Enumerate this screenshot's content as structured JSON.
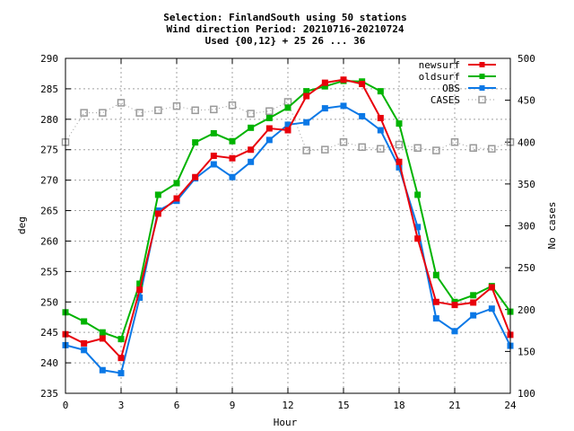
{
  "chart_data": {
    "type": "line",
    "title_lines": [
      "Selection: FinlandSouth using    50 stations",
      "Wind direction   Period: 20210716-20210724",
      "Used {00,12} + 25 26 ... 36"
    ],
    "xlabel": "Hour",
    "ylabel": "deg",
    "y2label": "No cases",
    "xlim": [
      0,
      24
    ],
    "ylim": [
      235,
      290
    ],
    "y2lim": [
      100,
      500
    ],
    "xticks": [
      0,
      3,
      6,
      9,
      12,
      15,
      18,
      21,
      24
    ],
    "yticks": [
      235,
      240,
      245,
      250,
      255,
      260,
      265,
      270,
      275,
      280,
      285,
      290
    ],
    "y2ticks": [
      100,
      150,
      200,
      250,
      300,
      350,
      400,
      450,
      500
    ],
    "grid": true,
    "legend_position": "top-right",
    "x": [
      0,
      1,
      2,
      3,
      4,
      5,
      6,
      7,
      8,
      9,
      10,
      11,
      12,
      13,
      14,
      15,
      16,
      17,
      18,
      19,
      20,
      21,
      22,
      23,
      24
    ],
    "series": [
      {
        "name": "newsurf",
        "axis": "y1",
        "color": "#e8000b",
        "marker": "square-filled",
        "line": "solid",
        "values": [
          244.7,
          243.2,
          244,
          240.8,
          252,
          264.5,
          267,
          270.5,
          274,
          273.6,
          275,
          278.5,
          278.2,
          283.8,
          286,
          286.5,
          285.8,
          280.2,
          273,
          260.4,
          250,
          249.5,
          249.9,
          252.4,
          244.6
        ]
      },
      {
        "name": "oldsurf",
        "axis": "y1",
        "color": "#00b300",
        "marker": "square-filled",
        "line": "solid",
        "values": [
          248.3,
          246.8,
          245,
          243.9,
          253,
          267.6,
          269.5,
          276.2,
          277.7,
          276.4,
          278.6,
          280.2,
          281.9,
          284.6,
          285.4,
          286.3,
          286.2,
          284.6,
          279.3,
          267.6,
          254.4,
          250,
          251.1,
          252.6,
          248.4
        ]
      },
      {
        "name": "OBS",
        "axis": "y1",
        "color": "#0b78e6",
        "marker": "square-filled",
        "line": "solid",
        "values": [
          242.9,
          242.1,
          238.8,
          238.3,
          250.7,
          265,
          266.6,
          270.3,
          272.6,
          270.5,
          273,
          276.6,
          279.1,
          279.5,
          281.8,
          282.2,
          280.5,
          278.2,
          272.1,
          262.3,
          247.3,
          245.2,
          247.8,
          248.9,
          242.8
        ]
      },
      {
        "name": "CASES",
        "axis": "y2",
        "color": "#999999",
        "marker": "square-open",
        "line": "dotted",
        "values": [
          400,
          435,
          435,
          447,
          435,
          438,
          443,
          438,
          439,
          444,
          434,
          437,
          448,
          390,
          391,
          400,
          394,
          392,
          397,
          393,
          390,
          400,
          393,
          392,
          400
        ]
      }
    ]
  }
}
